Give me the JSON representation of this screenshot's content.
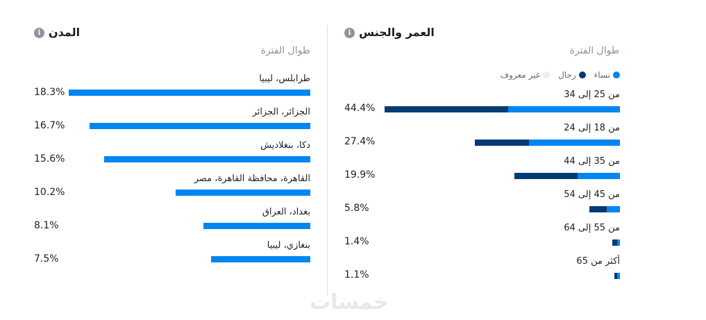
{
  "colors": {
    "women": "#0086f0",
    "men": "#003b73",
    "unknown": "#e4f0fb",
    "bar": "#0086f0"
  },
  "cities": {
    "title": "المدن",
    "info_icon": "info-icon",
    "period": "طوال الفترة",
    "max_percent": 18.3,
    "items": [
      {
        "label": "طرابلس، ليبيا",
        "percent": 18.3,
        "display": "18.3%"
      },
      {
        "label": "الجزائر، الجزائر",
        "percent": 16.7,
        "display": "16.7%"
      },
      {
        "label": "دكا، بنغلاديش",
        "percent": 15.6,
        "display": "15.6%"
      },
      {
        "label": "القاهرة، محافظة القاهرة، مصر",
        "percent": 10.2,
        "display": "10.2%"
      },
      {
        "label": "بغداد، العراق",
        "percent": 8.1,
        "display": "8.1%"
      },
      {
        "label": "بنغازي، ليبيا",
        "percent": 7.5,
        "display": "7.5%"
      }
    ]
  },
  "age_gender": {
    "title": "العمر والجنس",
    "info_icon": "info-icon",
    "period": "طوال الفترة",
    "legend": {
      "women": "نساء",
      "men": "رجال",
      "unknown": "غير معروف"
    },
    "max_percent": 44.4,
    "items": [
      {
        "label": "من 25 إلى 34",
        "percent": 44.4,
        "display": "44.4%",
        "women": 21.1,
        "men": 23.3
      },
      {
        "label": "من 18 إلى 24",
        "percent": 27.4,
        "display": "27.4%",
        "women": 17.1,
        "men": 10.3
      },
      {
        "label": "من 35 إلى 44",
        "percent": 19.9,
        "display": "19.9%",
        "women": 8.0,
        "men": 11.9
      },
      {
        "label": "من 45 إلى 54",
        "percent": 5.8,
        "display": "5.8%",
        "women": 2.5,
        "men": 3.3
      },
      {
        "label": "من 55 إلى 64",
        "percent": 1.4,
        "display": "1.4%",
        "women": 0.5,
        "men": 0.9
      },
      {
        "label": "أكثر من 65",
        "percent": 1.1,
        "display": "1.1%",
        "women": 0.5,
        "men": 0.6
      }
    ]
  },
  "watermark": "خمسات"
}
